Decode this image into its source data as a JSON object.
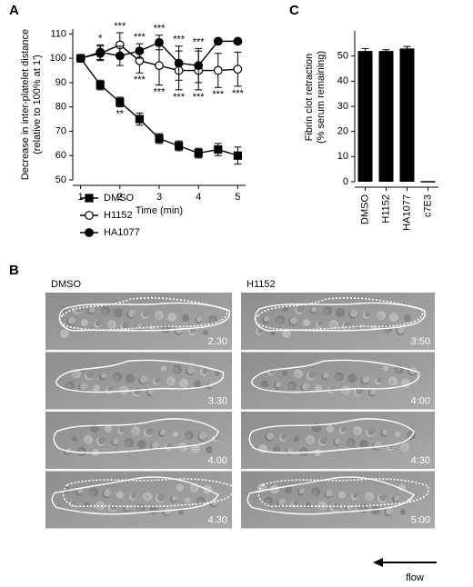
{
  "chart_data": [
    {
      "type": "line",
      "panel_label": "A",
      "y_label": [
        "Decrease in inter-platelet distance",
        "(relative to 100% at 1')"
      ],
      "x_label": "Time (min)",
      "x": [
        1,
        1.5,
        2,
        2.5,
        3,
        3.5,
        4,
        4.5,
        5
      ],
      "series": [
        {
          "name": "DMSO",
          "color": "#000000",
          "marker": "square",
          "marker_fill": "#000000",
          "values": [
            100,
            89,
            82,
            75,
            67,
            64,
            61,
            62.5,
            60
          ],
          "errors": [
            0,
            2,
            2,
            2.5,
            2,
            2,
            2,
            2.5,
            3.5
          ]
        },
        {
          "name": "H1152",
          "color": "#000000",
          "marker": "circle",
          "marker_fill": "#ffffff",
          "values": [
            100,
            102,
            105.5,
            99,
            97,
            95,
            95,
            95,
            95.5
          ],
          "errors": [
            0,
            3,
            5,
            5,
            8,
            8,
            8,
            7,
            7
          ]
        },
        {
          "name": "HA1077",
          "color": "#000000",
          "marker": "circle",
          "marker_fill": "#000000",
          "values": [
            100,
            102.5,
            101,
            103,
            106.5,
            98,
            97,
            107,
            107
          ],
          "errors": [
            0,
            3,
            4,
            3,
            3,
            7,
            7,
            0,
            0
          ]
        }
      ],
      "annotations_above": [
        null,
        "*",
        "***",
        "***",
        "***",
        "***",
        "***",
        null,
        null
      ],
      "annotations_below": [
        null,
        null,
        "**",
        "***",
        "***",
        "***",
        "***",
        "***",
        "***"
      ],
      "xlim": [
        0.8,
        5.2
      ],
      "xticks": [
        1,
        2,
        3,
        4,
        5
      ],
      "ylim": [
        50,
        112
      ],
      "yticks": [
        50,
        60,
        70,
        80,
        90,
        100,
        110
      ],
      "legend": "lower-left"
    },
    {
      "type": "bar",
      "panel_label": "C",
      "y_label": [
        "Fibrin clot retraction",
        "(% serum remaining)"
      ],
      "categories": [
        "DMSO",
        "H1152",
        "HA1077",
        "c7E3"
      ],
      "values": [
        52,
        52,
        53,
        0
      ],
      "errors": [
        1,
        0.5,
        0.8,
        0
      ],
      "color": "#000000",
      "ylim": [
        0,
        60
      ],
      "yticks": [
        0,
        10,
        20,
        30,
        40,
        50
      ]
    }
  ],
  "panel_b": {
    "label": "B",
    "columns": [
      {
        "title": "DMSO",
        "times": [
          "2.30",
          "3.30",
          "4.00",
          "4.30"
        ]
      },
      {
        "title": "H1152",
        "times": [
          "3:50",
          "4:00",
          "4:30",
          "5:00"
        ]
      }
    ],
    "flow": "flow"
  }
}
